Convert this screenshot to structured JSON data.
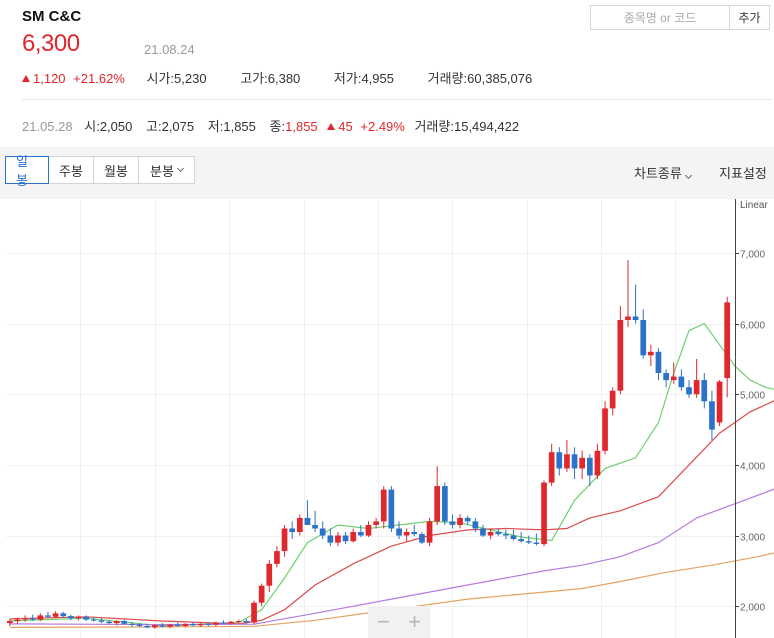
{
  "header": {
    "stock_name": "SM C&C",
    "search_placeholder": "종목명 or 코드",
    "add_label": "추가",
    "price": "6,300",
    "date": "21.08.24",
    "change": "1,120",
    "change_pct": "+21.62%",
    "open_label": "시가",
    "open": "5,230",
    "high_label": "고가",
    "high": "6,380",
    "low_label": "저가",
    "low": "4,955",
    "volume_label": "거래량",
    "volume": "60,385,076"
  },
  "history": {
    "date": "21.05.28",
    "open_label": "시",
    "open": "2,050",
    "high_label": "고",
    "high": "2,075",
    "low_label": "저",
    "low": "1,855",
    "close_label": "종",
    "close": "1,855",
    "change": "45",
    "change_pct": "+2.49%",
    "volume_label": "거래량",
    "volume": "15,494,422"
  },
  "toolbar": {
    "tabs": [
      "일봉",
      "주봉",
      "월봉",
      "분봉"
    ],
    "active_tab": "일봉",
    "chart_type_label": "차트종류",
    "indicator_label": "지표설정"
  },
  "colors": {
    "up": "#e0272e",
    "down": "#2b72c9",
    "ma5": "#6fcf6f",
    "ma20": "#dd4b4b",
    "ma60": "#b57be0",
    "ma120": "#e3a45f"
  },
  "chart_data": {
    "type": "candlestick",
    "scale_label": "Linear",
    "y_ticks": [
      "2,000",
      "3,000",
      "4,000",
      "5,000",
      "6,000",
      "7,000"
    ],
    "ylim": [
      1550,
      7650
    ],
    "candles": [
      [
        1760,
        1820,
        1720,
        1790
      ],
      [
        1790,
        1840,
        1750,
        1810
      ],
      [
        1810,
        1870,
        1780,
        1830
      ],
      [
        1830,
        1880,
        1790,
        1810
      ],
      [
        1810,
        1900,
        1790,
        1870
      ],
      [
        1870,
        1920,
        1830,
        1850
      ],
      [
        1850,
        1930,
        1830,
        1900
      ],
      [
        1900,
        1920,
        1840,
        1860
      ],
      [
        1860,
        1880,
        1800,
        1830
      ],
      [
        1830,
        1870,
        1800,
        1850
      ],
      [
        1850,
        1870,
        1790,
        1810
      ],
      [
        1810,
        1850,
        1780,
        1800
      ],
      [
        1800,
        1830,
        1760,
        1780
      ],
      [
        1780,
        1800,
        1740,
        1760
      ],
      [
        1760,
        1800,
        1730,
        1790
      ],
      [
        1790,
        1810,
        1740,
        1750
      ],
      [
        1750,
        1780,
        1710,
        1740
      ],
      [
        1740,
        1760,
        1700,
        1720
      ],
      [
        1720,
        1750,
        1690,
        1700
      ],
      [
        1700,
        1740,
        1680,
        1730
      ],
      [
        1730,
        1760,
        1700,
        1710
      ],
      [
        1710,
        1750,
        1690,
        1740
      ],
      [
        1740,
        1770,
        1710,
        1720
      ],
      [
        1720,
        1760,
        1700,
        1750
      ],
      [
        1750,
        1770,
        1720,
        1730
      ],
      [
        1730,
        1760,
        1710,
        1750
      ],
      [
        1750,
        1770,
        1720,
        1740
      ],
      [
        1740,
        1780,
        1720,
        1770
      ],
      [
        1770,
        1800,
        1750,
        1760
      ],
      [
        1760,
        1790,
        1740,
        1780
      ],
      [
        1780,
        1810,
        1760,
        1790
      ],
      [
        1790,
        1820,
        1750,
        1770
      ],
      [
        1770,
        2080,
        1740,
        2050
      ],
      [
        2050,
        2320,
        2000,
        2290
      ],
      [
        2290,
        2650,
        2200,
        2600
      ],
      [
        2600,
        2850,
        2550,
        2780
      ],
      [
        2780,
        3150,
        2700,
        3100
      ],
      [
        3100,
        3200,
        2950,
        3050
      ],
      [
        3050,
        3300,
        3000,
        3250
      ],
      [
        3250,
        3500,
        3200,
        3150
      ],
      [
        3150,
        3350,
        3050,
        3100
      ],
      [
        3100,
        3200,
        2950,
        3000
      ],
      [
        3000,
        3100,
        2850,
        2900
      ],
      [
        2900,
        3050,
        2850,
        3000
      ],
      [
        3000,
        3050,
        2880,
        2920
      ],
      [
        2920,
        3100,
        2900,
        3050
      ],
      [
        3050,
        3150,
        2980,
        3000
      ],
      [
        3000,
        3200,
        2980,
        3150
      ],
      [
        3150,
        3250,
        3100,
        3200
      ],
      [
        3200,
        3700,
        3100,
        3650
      ],
      [
        3650,
        3700,
        3050,
        3100
      ],
      [
        3100,
        3200,
        2950,
        3000
      ],
      [
        3000,
        3100,
        2920,
        3050
      ],
      [
        3050,
        3150,
        2990,
        3020
      ],
      [
        3020,
        3050,
        2880,
        2900
      ],
      [
        2900,
        3250,
        2850,
        3200
      ],
      [
        3200,
        3980,
        3150,
        3700
      ],
      [
        3700,
        3750,
        3150,
        3200
      ],
      [
        3200,
        3300,
        3100,
        3150
      ],
      [
        3150,
        3300,
        3100,
        3250
      ],
      [
        3250,
        3280,
        3150,
        3200
      ],
      [
        3200,
        3250,
        3050,
        3100
      ],
      [
        3100,
        3150,
        2980,
        3000
      ],
      [
        3000,
        3100,
        2950,
        3050
      ],
      [
        3050,
        3100,
        2990,
        3020
      ],
      [
        3020,
        3080,
        2950,
        3000
      ],
      [
        3000,
        3080,
        2930,
        2950
      ],
      [
        2950,
        3050,
        2900,
        2920
      ],
      [
        2920,
        3000,
        2880,
        2900
      ],
      [
        2900,
        3030,
        2860,
        2880
      ],
      [
        2880,
        3780,
        2850,
        3750
      ],
      [
        3750,
        4300,
        3700,
        4180
      ],
      [
        4180,
        4250,
        3850,
        3950
      ],
      [
        3950,
        4350,
        3900,
        4150
      ],
      [
        4150,
        4250,
        3800,
        3950
      ],
      [
        3950,
        4200,
        3800,
        4100
      ],
      [
        4100,
        4150,
        3700,
        3850
      ],
      [
        3850,
        4300,
        3800,
        4200
      ],
      [
        4200,
        4900,
        4150,
        4800
      ],
      [
        4800,
        5100,
        4700,
        5050
      ],
      [
        5050,
        6250,
        5000,
        6050
      ],
      [
        6050,
        6900,
        5950,
        6100
      ],
      [
        6100,
        6550,
        6000,
        6050
      ],
      [
        6050,
        6200,
        5500,
        5550
      ],
      [
        5550,
        5700,
        5400,
        5600
      ],
      [
        5600,
        5650,
        5200,
        5300
      ],
      [
        5300,
        5350,
        5100,
        5200
      ],
      [
        5200,
        5450,
        5150,
        5250
      ],
      [
        5250,
        5350,
        5050,
        5100
      ],
      [
        5100,
        5200,
        4950,
        5000
      ],
      [
        5000,
        5500,
        4950,
        5200
      ],
      [
        5200,
        5300,
        4800,
        4900
      ],
      [
        4900,
        5050,
        4350,
        4500
      ],
      [
        4600,
        5200,
        4550,
        5180
      ],
      [
        5230,
        6380,
        4955,
        6300
      ]
    ],
    "moving_averages": [
      {
        "name": "5",
        "color": "#6fcf6f",
        "points": [
          [
            0,
            1790
          ],
          [
            10,
            1830
          ],
          [
            20,
            1720
          ],
          [
            30,
            1770
          ],
          [
            33,
            1950
          ],
          [
            36,
            2400
          ],
          [
            39,
            2900
          ],
          [
            43,
            3150
          ],
          [
            47,
            3100
          ],
          [
            51,
            3150
          ],
          [
            55,
            3200
          ],
          [
            59,
            3180
          ],
          [
            63,
            3080
          ],
          [
            67,
            2980
          ],
          [
            71,
            2930
          ],
          [
            74,
            3500
          ],
          [
            78,
            3950
          ],
          [
            82,
            4100
          ],
          [
            85,
            4600
          ],
          [
            87,
            5300
          ],
          [
            89,
            5900
          ],
          [
            91,
            6000
          ],
          [
            93,
            5700
          ],
          [
            95,
            5400
          ],
          [
            97,
            5200
          ],
          [
            99,
            5100
          ],
          [
            101,
            5050
          ],
          [
            102,
            5100
          ]
        ]
      },
      {
        "name": "20",
        "color": "#dd4b4b",
        "points": [
          [
            0,
            1820
          ],
          [
            10,
            1850
          ],
          [
            20,
            1790
          ],
          [
            30,
            1750
          ],
          [
            33,
            1800
          ],
          [
            36,
            1950
          ],
          [
            40,
            2300
          ],
          [
            45,
            2600
          ],
          [
            50,
            2850
          ],
          [
            55,
            3000
          ],
          [
            60,
            3080
          ],
          [
            65,
            3100
          ],
          [
            70,
            3080
          ],
          [
            73,
            3100
          ],
          [
            76,
            3250
          ],
          [
            80,
            3350
          ],
          [
            85,
            3550
          ],
          [
            89,
            4000
          ],
          [
            93,
            4450
          ],
          [
            97,
            4750
          ],
          [
            100,
            4900
          ],
          [
            102,
            5000
          ]
        ]
      },
      {
        "name": "60",
        "color": "#b57be0",
        "points": [
          [
            0,
            1750
          ],
          [
            20,
            1740
          ],
          [
            32,
            1745
          ],
          [
            40,
            1900
          ],
          [
            50,
            2100
          ],
          [
            60,
            2300
          ],
          [
            70,
            2500
          ],
          [
            75,
            2580
          ],
          [
            80,
            2700
          ],
          [
            85,
            2900
          ],
          [
            90,
            3250
          ],
          [
            95,
            3450
          ],
          [
            100,
            3650
          ],
          [
            102,
            3780
          ]
        ]
      },
      {
        "name": "120",
        "color": "#e3a45f",
        "points": [
          [
            0,
            1700
          ],
          [
            25,
            1710
          ],
          [
            32,
            1715
          ],
          [
            40,
            1800
          ],
          [
            50,
            1950
          ],
          [
            60,
            2100
          ],
          [
            70,
            2200
          ],
          [
            75,
            2250
          ],
          [
            80,
            2350
          ],
          [
            86,
            2480
          ],
          [
            92,
            2580
          ],
          [
            98,
            2700
          ],
          [
            102,
            2800
          ]
        ]
      }
    ]
  },
  "zoom": {
    "out_label": "−",
    "in_label": "+"
  }
}
